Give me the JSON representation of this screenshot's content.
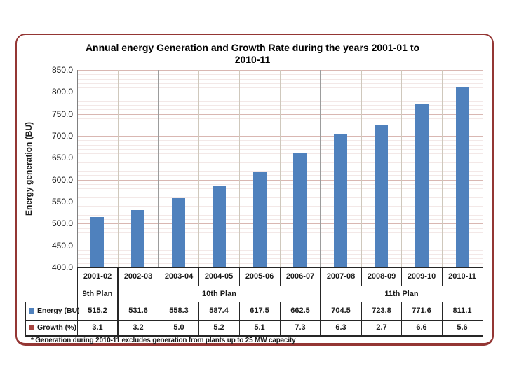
{
  "slide": {
    "title_line1": "Annual energy Generation and Growth Rate during the years 2001-01 to",
    "title_line2": "2010-11",
    "footnote": "* Generation during 2010-11 excludes generation from plants up to 25 MW capacity"
  },
  "chart_data": {
    "type": "bar",
    "title": "Annual energy Generation and Growth Rate during the years 2001-01 to 2010-11",
    "xlabel": "",
    "ylabel": "Energy generation (BU)",
    "ylim": [
      400,
      850
    ],
    "ytick_step": 50,
    "minor_grid_step": 10,
    "grid": "on",
    "legend_position": "table-left",
    "data_table_shown": true,
    "categories": [
      "2001-02",
      "2002-03",
      "2003-04",
      "2004-05",
      "2005-06",
      "2006-07",
      "2007-08",
      "2008-09",
      "2009-10",
      "2010-11"
    ],
    "plan_groups": [
      {
        "label": "9th Plan",
        "span": 1
      },
      {
        "label": "10th Plan",
        "span": 5
      },
      {
        "label": "11th Plan",
        "span": 4
      }
    ],
    "plan_divider_boundaries": [
      2,
      6
    ],
    "series": [
      {
        "name": "Energy (BU)",
        "color": "#4f81bd",
        "plotted": "bar",
        "values": [
          515.2,
          531.6,
          558.3,
          587.4,
          617.5,
          662.5,
          704.5,
          723.8,
          771.6,
          811.1
        ]
      },
      {
        "name": "Growth (%)",
        "color": "#a5433e",
        "plotted": "table-only",
        "values": [
          3.1,
          3.2,
          5.0,
          5.2,
          5.1,
          7.3,
          6.3,
          2.7,
          6.6,
          5.6
        ]
      }
    ]
  },
  "colors": {
    "frame_border": "#943634",
    "bar": "#4f81bd",
    "growth_swatch": "#a5433e",
    "major_gridline": "#d9b7b2",
    "minor_gridline": "#f3e8e7",
    "column_gridline": "#cfc8bc",
    "plan_divider": "#9c9c9c",
    "axis_line": "#808080",
    "table_line": "#262626",
    "text": "#1a1a1a"
  }
}
